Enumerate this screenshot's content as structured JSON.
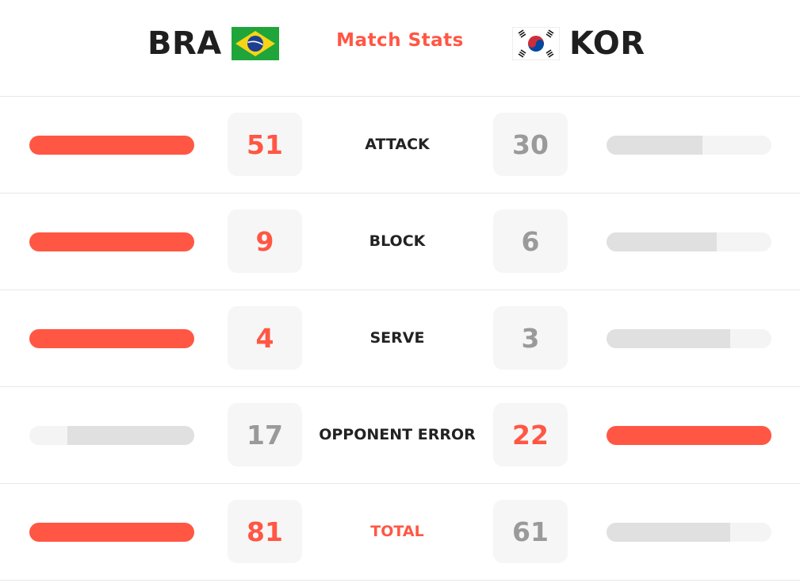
{
  "header": {
    "title": "Match Stats",
    "team_left": {
      "code": "BRA",
      "flag_icon": "brazil-flag-icon"
    },
    "team_right": {
      "code": "KOR",
      "flag_icon": "south-korea-flag-icon"
    }
  },
  "colors": {
    "accent": "#ff5744",
    "bar_track": "#f4f4f4",
    "bar_loser": "#e0e0e0",
    "value_box": "#f6f6f6",
    "muted_value": "#9a9a9a"
  },
  "stats": [
    {
      "label": "ATTACK",
      "left": "51",
      "right": "30",
      "left_level": 1.0,
      "right_level": 0.58,
      "winner": "left"
    },
    {
      "label": "BLOCK",
      "left": "9",
      "right": "6",
      "left_level": 1.0,
      "right_level": 0.67,
      "winner": "left"
    },
    {
      "label": "SERVE",
      "left": "4",
      "right": "3",
      "left_level": 1.0,
      "right_level": 0.75,
      "winner": "left"
    },
    {
      "label": "OPPONENT ERROR",
      "left": "17",
      "right": "22",
      "left_level": 0.77,
      "right_level": 1.0,
      "winner": "right"
    },
    {
      "label": "TOTAL",
      "left": "81",
      "right": "61",
      "left_level": 1.0,
      "right_level": 0.75,
      "winner": "left",
      "accent_label": true
    }
  ]
}
